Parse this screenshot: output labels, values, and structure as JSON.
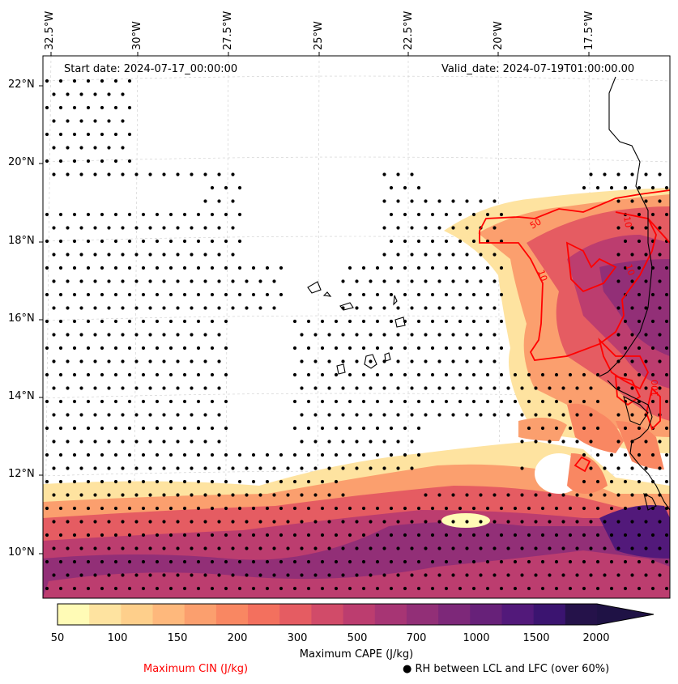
{
  "map": {
    "start_date": "Start date: 2024-07-17_00:00:00",
    "valid_date": "Valid_date: 2024-07-19T01:00:00.00",
    "lon_labels": [
      "32.5°W",
      "30°W",
      "27.5°W",
      "25°W",
      "22.5°W",
      "20°W",
      "17.5°W"
    ],
    "lat_labels": [
      "22°N",
      "20°N",
      "18°N",
      "16°N",
      "14°N",
      "12°N",
      "10°N"
    ],
    "contour_labels": [
      "50",
      "10",
      "10",
      "10",
      "100"
    ]
  },
  "colorbar": {
    "title": "Maximum CAPE (J/kg)",
    "ticks": [
      "50",
      "100",
      "150",
      "200",
      "300",
      "500",
      "700",
      "1000",
      "1500",
      "2000"
    ],
    "colors": [
      "#fffbb6",
      "#fee3a0",
      "#fecf8b",
      "#feb87c",
      "#fb9f6e",
      "#f98762",
      "#f3705e",
      "#e55c62",
      "#d14b69",
      "#bc3d6f",
      "#a73574",
      "#922f77",
      "#7d2879",
      "#672179",
      "#52197a",
      "#3b1470",
      "#25124a"
    ],
    "extend_color": "#1f1245"
  },
  "legend": {
    "cin": "Maximum CIN (J/kg)",
    "rh": "● RH between LCL and LFC (over 60%)",
    "cin_color": "#ff0000"
  }
}
